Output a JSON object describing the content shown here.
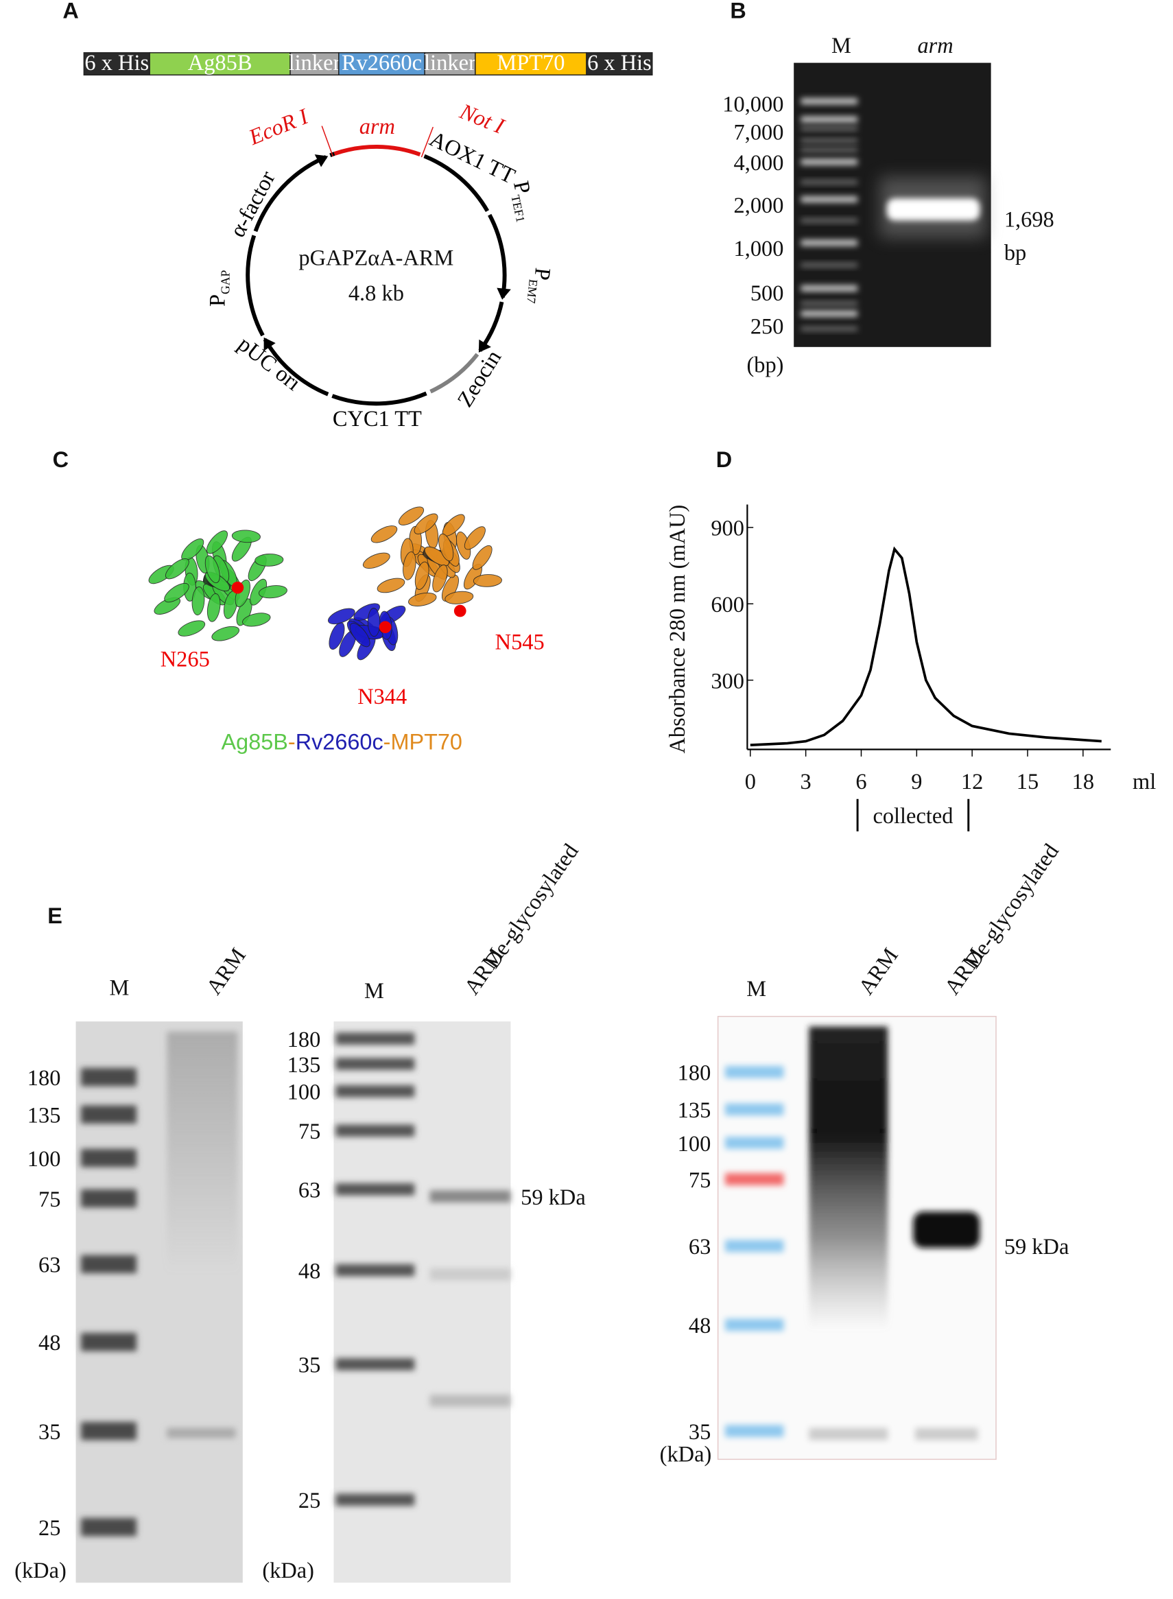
{
  "panel_labels": [
    "A",
    "B",
    "C",
    "D",
    "E"
  ],
  "a": {
    "construct": [
      "6 x His",
      "Ag85B",
      "linker",
      "Rv2660c",
      "linker",
      "MPT70",
      "6 x His"
    ],
    "plasmid_name": "pGAPZαA-ARM",
    "plasmid_size": "4.8 kb",
    "labels": [
      {
        "text": "EcoR I"
      },
      {
        "text": "Not I"
      },
      {
        "text": "arm"
      },
      {
        "text": "AOX1 TT"
      },
      {
        "text": "P",
        "sub": "TEF1"
      },
      {
        "text": "P",
        "sub": "EM7"
      },
      {
        "text": "Zeocin"
      },
      {
        "text": "CYC1 TT"
      },
      {
        "text": "pUC ori"
      },
      {
        "text": "P",
        "sub": "GAP"
      },
      {
        "text": "α-factor"
      }
    ]
  },
  "b": {
    "lanes": [
      "M",
      "arm"
    ],
    "ladder": [
      "10,000",
      "7,000",
      "4,000",
      "2,000",
      "1,000",
      "500",
      "250"
    ],
    "unit": "(bp)",
    "band_label": "1,698",
    "band_unit": "bp"
  },
  "c": {
    "sites": [
      "N265",
      "N344",
      "N545"
    ],
    "caption": [
      "Ag85B",
      "-",
      "Rv2660c",
      "-",
      "MPT70"
    ]
  },
  "d": {
    "type": "line",
    "y_label": "Absorbance 280 nm (mAU)",
    "x_unit": "ml",
    "x": [
      0,
      2,
      3,
      4,
      5,
      6,
      6.5,
      7,
      7.5,
      7.8,
      8.2,
      8.6,
      9,
      9.5,
      10,
      11,
      12,
      14,
      16,
      19
    ],
    "values": [
      45,
      52,
      60,
      85,
      140,
      240,
      340,
      520,
      730,
      815,
      780,
      640,
      450,
      300,
      230,
      160,
      120,
      90,
      75,
      60
    ],
    "xlim": [
      0,
      19.5
    ],
    "ylim": [
      0,
      990
    ],
    "xticks": [
      0,
      3,
      6,
      9,
      12,
      15,
      18
    ],
    "yticks": [
      300,
      600,
      900
    ],
    "collected": {
      "label": "collected",
      "range": [
        5.8,
        11.8
      ]
    }
  },
  "e": {
    "gels": [
      {
        "lanes": [
          [
            "M"
          ],
          [
            "ARM"
          ]
        ],
        "markers": [
          "180",
          "135",
          "100",
          "75",
          "63",
          "48",
          "35",
          "25"
        ],
        "unit": "(kDa)"
      },
      {
        "lanes": [
          [
            "M"
          ],
          [
            "De-glycosylated",
            "ARM"
          ]
        ],
        "markers": [
          "180",
          "135",
          "100",
          "75",
          "63",
          "48",
          "35",
          "25"
        ],
        "unit": "(kDa)",
        "band_label": "59 kDa"
      },
      {
        "lanes": [
          [
            "M"
          ],
          [
            "ARM"
          ],
          [
            "De-glycosylated",
            "ARM"
          ]
        ],
        "markers": [
          "180",
          "135",
          "100",
          "75",
          "63",
          "48",
          "35"
        ],
        "unit": "(kDa)",
        "band_label": "59 kDa"
      }
    ]
  }
}
